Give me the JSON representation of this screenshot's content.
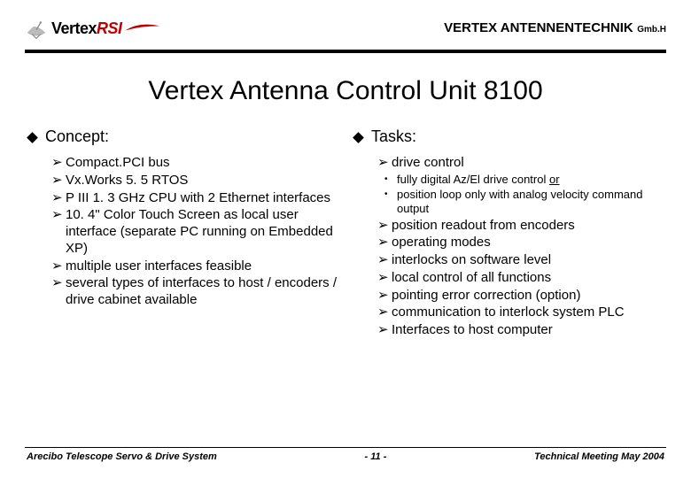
{
  "header": {
    "logo_black": "Vertex",
    "logo_red": "RSI",
    "company": "VERTEX ANTENNENTECHNIK",
    "company_suffix": "Gmb.H"
  },
  "title": "Vertex Antenna Control Unit 8100",
  "left": {
    "heading": "Concept:",
    "items": [
      "Compact.PCI bus",
      "Vx.Works 5. 5 RTOS",
      "P III 1. 3 GHz CPU with 2 Ethernet interfaces",
      "10. 4\" Color Touch Screen as local user interface (separate PC running on Embedded XP)",
      "multiple user interfaces feasible",
      "several types of interfaces to host / encoders / drive cabinet available"
    ]
  },
  "right": {
    "heading": "Tasks:",
    "first_item": "drive control",
    "sub_items": [
      {
        "pre": "fully digital Az/El drive control ",
        "u": "or"
      },
      {
        "pre": "position loop only with analog velocity command output",
        "u": ""
      }
    ],
    "items": [
      "position readout from encoders",
      "operating modes",
      "interlocks on software level",
      "local control of all functions",
      "pointing error correction (option)",
      "communication to interlock system PLC",
      "Interfaces to host computer"
    ]
  },
  "footer": {
    "left": "Arecibo Telescope Servo & Drive System",
    "center": "- 11 -",
    "right": "Technical Meeting May 2004"
  }
}
